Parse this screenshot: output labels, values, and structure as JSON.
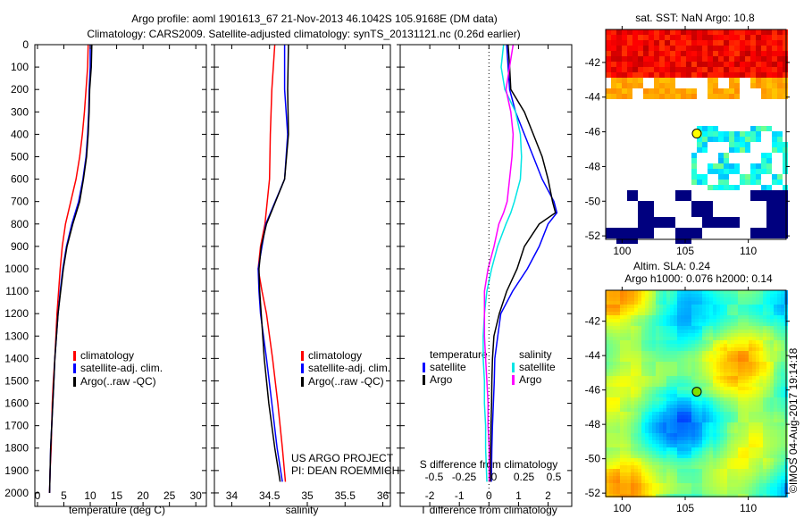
{
  "title_line1": "Argo profile: aoml 1901613_67 21-Nov-2013 46.1042S 105.9168E (DM data)",
  "title_line2": "Climatology: CARS2009. Satellite-adjusted climatology: synTS_20131121.nc (0.26d earlier)",
  "credit_line1": "US ARGO PROJECT",
  "credit_line2": "PI: DEAN ROEMMICH",
  "timestamp": "©IMOS 04-Aug-2017 19:14:18",
  "colors": {
    "climatology": "#ff0000",
    "satellite": "#0000ff",
    "argo": "#000000",
    "sal_sat": "#00e5e5",
    "sal_argo": "#ff00ff"
  },
  "chart_data": [
    {
      "type": "line",
      "name": "temperature",
      "xlabel": "temperature (deg C)",
      "xticks": [
        0,
        5,
        10,
        15,
        20,
        25,
        30
      ],
      "xlim": [
        -0.5,
        32
      ],
      "ylim": [
        0,
        2060
      ],
      "yticks": [
        0,
        100,
        200,
        300,
        400,
        500,
        600,
        700,
        800,
        900,
        1000,
        1100,
        1200,
        1300,
        1400,
        1500,
        1600,
        1700,
        1800,
        1900,
        2000
      ],
      "legend": [
        "climatology",
        "satellite-adj. clim.",
        "Argo(..raw -QC)"
      ],
      "legend_position": "lower-middle",
      "depth": [
        0,
        100,
        200,
        300,
        400,
        500,
        600,
        700,
        800,
        900,
        1000,
        1100,
        1200,
        1300,
        1400,
        1500,
        1600,
        1700,
        1800,
        1900,
        2000
      ],
      "series": [
        {
          "name": "climatology",
          "color": "#ff0000",
          "values": [
            9.6,
            9.5,
            9.2,
            8.9,
            8.5,
            8.0,
            7.3,
            6.3,
            5.3,
            4.7,
            4.3,
            4.0,
            3.7,
            3.5,
            3.3,
            3.0,
            2.8,
            2.7,
            2.6,
            2.4,
            2.3
          ]
        },
        {
          "name": "satellite-adj. clim.",
          "color": "#0000ff",
          "values": [
            10.0,
            10.0,
            9.8,
            9.7,
            9.5,
            9.2,
            8.6,
            7.8,
            6.5,
            5.5,
            4.8,
            4.3,
            3.9,
            3.6,
            3.3,
            3.1,
            2.9,
            2.7,
            2.5,
            2.4,
            2.3
          ]
        },
        {
          "name": "Argo(..raw -QC)",
          "color": "#000000",
          "values": [
            10.3,
            10.2,
            9.9,
            9.8,
            9.6,
            9.3,
            8.7,
            8.0,
            6.7,
            5.6,
            4.9,
            4.4,
            3.9,
            3.6,
            3.3,
            3.1,
            2.9,
            2.7,
            2.5,
            2.4,
            2.3
          ]
        }
      ]
    },
    {
      "type": "line",
      "name": "salinity",
      "xlabel": "salinity",
      "xticks": [
        34,
        34.5,
        35,
        35.5,
        36
      ],
      "xlim": [
        33.77,
        36.1
      ],
      "ylim": [
        0,
        2060
      ],
      "legend": [
        "climatology",
        "satellite-adj. clim.",
        "Argo(..raw -QC)"
      ],
      "legend_position": "lower-middle",
      "depth": [
        0,
        200,
        400,
        600,
        800,
        900,
        1000,
        1100,
        1200,
        1400,
        1600,
        1800,
        1950
      ],
      "series": [
        {
          "name": "climatology",
          "color": "#ff0000",
          "values": [
            34.57,
            34.53,
            34.51,
            34.5,
            34.44,
            34.38,
            34.35,
            34.4,
            34.46,
            34.54,
            34.61,
            34.67,
            34.71
          ]
        },
        {
          "name": "satellite-adj. clim.",
          "color": "#0000ff",
          "values": [
            34.7,
            34.7,
            34.74,
            34.7,
            34.45,
            34.4,
            34.35,
            34.36,
            34.38,
            34.46,
            34.53,
            34.6,
            34.67
          ]
        },
        {
          "name": "Argo(..raw -QC)",
          "color": "#000000",
          "values": [
            34.75,
            34.74,
            34.75,
            34.7,
            34.46,
            34.39,
            34.36,
            34.37,
            34.39,
            34.43,
            34.49,
            34.57,
            34.64
          ]
        }
      ]
    },
    {
      "type": "line",
      "name": "difference",
      "xlabel": "T difference from climatology",
      "xticks": [
        -2,
        -1,
        0,
        1,
        2
      ],
      "xlim": [
        -3,
        2.8
      ],
      "x2label": "S difference from climatology",
      "x2ticks": [
        "-0.5",
        "-0.25",
        "0",
        "0.25",
        "0.5"
      ],
      "x2lim": [
        -0.5,
        0.5
      ],
      "ylim": [
        0,
        2060
      ],
      "legend_headers": [
        "temperature",
        "salinity"
      ],
      "legend": [
        "satellite",
        "Argo",
        "satellite",
        "Argo"
      ],
      "depth": [
        0,
        100,
        200,
        300,
        400,
        500,
        600,
        700,
        750,
        800,
        900,
        1000,
        1100,
        1200,
        1300,
        1400,
        1500,
        1600,
        1700,
        1800,
        1950
      ],
      "series": [
        {
          "name": "T satellite",
          "color": "#0000ff",
          "axis": "T",
          "values": [
            0.6,
            0.65,
            0.7,
            0.9,
            1.2,
            1.5,
            1.8,
            2.2,
            2.3,
            2.0,
            1.7,
            1.3,
            0.8,
            0.4,
            0.3,
            0.2,
            0.18,
            0.15,
            0.12,
            0.1,
            0.08
          ]
        },
        {
          "name": "T Argo",
          "color": "#000000",
          "axis": "T",
          "values": [
            0.65,
            0.7,
            0.74,
            1.2,
            1.5,
            1.8,
            2.0,
            2.15,
            2.25,
            1.7,
            1.2,
            0.95,
            0.6,
            0.35,
            0.17,
            0.12,
            0.1,
            0.09,
            0.07,
            0.06,
            0.05
          ]
        },
        {
          "name": "S satellite",
          "color": "#00e5e5",
          "axis": "S",
          "values": [
            0.08,
            0.06,
            0.09,
            0.18,
            0.22,
            0.23,
            0.22,
            0.17,
            0.14,
            0.1,
            0.03,
            -0.02,
            -0.06,
            -0.08,
            -0.09,
            -0.09,
            -0.08,
            -0.08,
            -0.07,
            -0.07,
            -0.06
          ]
        },
        {
          "name": "S Argo",
          "color": "#ff00ff",
          "axis": "S",
          "values": [
            0.16,
            0.13,
            0.1,
            0.14,
            0.16,
            0.15,
            0.13,
            0.11,
            0.08,
            0.04,
            0.0,
            -0.05,
            -0.08,
            -0.08,
            -0.08,
            -0.07,
            -0.06,
            -0.05,
            -0.05,
            -0.04,
            -0.04
          ]
        }
      ]
    },
    {
      "type": "heatmap",
      "name": "sst-map",
      "title": "sat. SST: NaN Argo: 10.8",
      "xticks": [
        100,
        105,
        110
      ],
      "yticks": [
        -42,
        -44,
        -46,
        -48,
        -50,
        -52
      ],
      "xlim": [
        98.7,
        113
      ],
      "ylim": [
        -52.2,
        -40.1
      ],
      "float_position": [
        105.92,
        -46.1
      ]
    },
    {
      "type": "heatmap",
      "name": "sla-map",
      "title_line1": "Altim. SLA: 0.24",
      "title_line2": "Argo h1000: 0.076 h2000: 0.14",
      "xticks": [
        100,
        105,
        110
      ],
      "yticks": [
        -42,
        -44,
        -46,
        -48,
        -50,
        -52
      ],
      "xlim": [
        98.7,
        113
      ],
      "ylim": [
        -52.2,
        -40.2
      ],
      "float_position": [
        105.92,
        -46.1
      ]
    }
  ]
}
